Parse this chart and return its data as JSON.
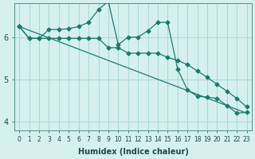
{
  "xlabel": "Humidex (Indice chaleur)",
  "ylabel": "",
  "background_color": "#d6f0f0",
  "grid_color": "#b0d8d8",
  "line_color": "#1a7a6e",
  "xlim": [
    -0.5,
    23.5
  ],
  "ylim": [
    3.8,
    6.8
  ],
  "xtick_labels": [
    "0",
    "1",
    "2",
    "3",
    "4",
    "5",
    "6",
    "7",
    "8",
    "9",
    "10",
    "11",
    "12",
    "13",
    "14",
    "15",
    "16",
    "17",
    "18",
    "19",
    "20",
    "21",
    "22",
    "23"
  ],
  "ytick_labels": [
    "4",
    "5",
    "6"
  ],
  "ytick_values": [
    4,
    5,
    6
  ],
  "line1_x": [
    0,
    1,
    2,
    3,
    4,
    5,
    6,
    7,
    8,
    9,
    10,
    11,
    12,
    13,
    14,
    15,
    16,
    17,
    18,
    19,
    20,
    21,
    22,
    23
  ],
  "line1_y": [
    6.25,
    5.97,
    5.97,
    6.18,
    6.18,
    6.2,
    6.25,
    6.35,
    6.65,
    6.85,
    5.82,
    6.0,
    6.0,
    6.15,
    6.35,
    6.35,
    5.25,
    4.75,
    4.6,
    4.58,
    4.55,
    4.38,
    4.2,
    4.22
  ],
  "line2_x": [
    0,
    1,
    2,
    3,
    4,
    5,
    6,
    7,
    8,
    9,
    10,
    11,
    12,
    13,
    14,
    15,
    16,
    17,
    18,
    19,
    20,
    21,
    22,
    23
  ],
  "line2_y": [
    6.25,
    5.97,
    5.97,
    5.97,
    5.97,
    5.97,
    5.97,
    5.97,
    5.97,
    5.75,
    5.75,
    5.62,
    5.62,
    5.62,
    5.62,
    5.52,
    5.45,
    5.35,
    5.2,
    5.05,
    4.88,
    4.72,
    4.55,
    4.35
  ],
  "line3_x": [
    0,
    23
  ],
  "line3_y": [
    6.25,
    4.2
  ],
  "lw": 0.9,
  "markersize": 2.5
}
